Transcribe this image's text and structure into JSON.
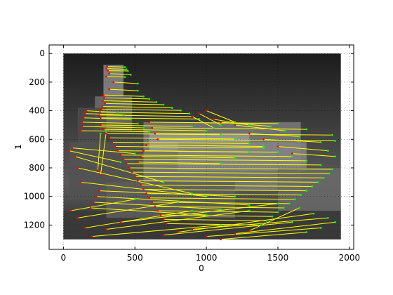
{
  "chart_data": {
    "type": "scatter",
    "title": "",
    "xlabel": "0",
    "ylabel": "1",
    "xlim": [
      -100,
      2030
    ],
    "ylim": [
      1370,
      -60
    ],
    "y_inverted": true,
    "grid": true,
    "x_ticks": [
      0,
      500,
      1000,
      1500,
      2000
    ],
    "x_tick_labels": [
      "0",
      "500",
      "1000",
      "1500",
      "2000"
    ],
    "y_ticks": [
      0,
      200,
      400,
      600,
      800,
      1000,
      1200
    ],
    "y_tick_labels": [
      "0",
      "200",
      "400",
      "600",
      "800",
      "1000",
      "1200"
    ],
    "background_image": {
      "description_type": "grayscale photograph",
      "extent_x": [
        0,
        1940
      ],
      "extent_y": [
        0,
        1300
      ]
    },
    "colors": {
      "match_line": "#ffff00",
      "keypoint_a": "#ff0000",
      "keypoint_b": "#00ff00"
    },
    "series": [
      {
        "segments": [
          [
            305,
            90,
            430,
            95
          ],
          [
            300,
            105,
            440,
            110
          ],
          [
            310,
            120,
            450,
            122
          ],
          [
            320,
            140,
            470,
            148
          ],
          [
            300,
            160,
            430,
            165
          ],
          [
            280,
            290,
            560,
            300
          ],
          [
            285,
            310,
            600,
            318
          ],
          [
            275,
            330,
            650,
            340
          ],
          [
            290,
            350,
            700,
            358
          ],
          [
            270,
            370,
            760,
            380
          ],
          [
            265,
            390,
            820,
            398
          ],
          [
            255,
            410,
            880,
            420
          ],
          [
            250,
            430,
            900,
            440
          ],
          [
            260,
            450,
            950,
            458
          ],
          [
            160,
            400,
            380,
            412
          ],
          [
            150,
            420,
            420,
            430
          ],
          [
            140,
            450,
            470,
            460
          ],
          [
            130,
            480,
            520,
            490
          ],
          [
            130,
            510,
            560,
            520
          ],
          [
            120,
            540,
            600,
            548
          ],
          [
            260,
            500,
            900,
            510
          ],
          [
            280,
            530,
            1000,
            540
          ],
          [
            300,
            560,
            1100,
            568
          ],
          [
            320,
            590,
            1200,
            598
          ],
          [
            340,
            620,
            1300,
            630
          ],
          [
            360,
            650,
            1400,
            660
          ],
          [
            380,
            680,
            1500,
            690
          ],
          [
            400,
            710,
            1600,
            720
          ],
          [
            420,
            740,
            1700,
            750
          ],
          [
            440,
            770,
            1800,
            780
          ],
          [
            460,
            800,
            1880,
            810
          ],
          [
            480,
            830,
            1860,
            840
          ],
          [
            500,
            860,
            1820,
            870
          ],
          [
            520,
            890,
            1780,
            900
          ],
          [
            540,
            920,
            1740,
            930
          ],
          [
            560,
            950,
            1700,
            960
          ],
          [
            580,
            980,
            1660,
            990
          ],
          [
            600,
            1010,
            1620,
            1020
          ],
          [
            620,
            1040,
            1580,
            1050
          ],
          [
            640,
            1070,
            1540,
            1080
          ],
          [
            660,
            1100,
            1500,
            1110
          ],
          [
            680,
            1130,
            1460,
            1140
          ],
          [
            700,
            1160,
            1420,
            1170
          ],
          [
            720,
            1190,
            1380,
            1200
          ],
          [
            600,
            480,
            1500,
            490
          ],
          [
            620,
            520,
            1700,
            530
          ],
          [
            640,
            560,
            1880,
            570
          ],
          [
            660,
            600,
            1900,
            610
          ],
          [
            580,
            640,
            1400,
            650
          ],
          [
            560,
            680,
            1300,
            690
          ],
          [
            540,
            720,
            1200,
            730
          ],
          [
            520,
            760,
            1100,
            770
          ],
          [
            60,
            660,
            500,
            700
          ],
          [
            40,
            680,
            400,
            760
          ],
          [
            80,
            720,
            700,
            900
          ],
          [
            100,
            800,
            900,
            980
          ],
          [
            120,
            900,
            1000,
            1000
          ],
          [
            50,
            1100,
            500,
            1020
          ],
          [
            100,
            1150,
            800,
            1040
          ],
          [
            150,
            1220,
            900,
            1100
          ],
          [
            200,
            1280,
            1100,
            1200
          ],
          [
            300,
            1230,
            1300,
            1100
          ],
          [
            400,
            1180,
            1500,
            1050
          ],
          [
            700,
            1270,
            1600,
            1180
          ],
          [
            800,
            1250,
            1750,
            1120
          ],
          [
            900,
            1230,
            1850,
            1150
          ],
          [
            1000,
            1280,
            1800,
            1220
          ],
          [
            1100,
            1300,
            1700,
            1250
          ],
          [
            1200,
            1260,
            1900,
            1180
          ],
          [
            1300,
            1240,
            1650,
            1080
          ],
          [
            250,
            960,
            1200,
            1000
          ],
          [
            230,
            1000,
            1300,
            1060
          ],
          [
            210,
            1040,
            1100,
            1090
          ],
          [
            190,
            1080,
            1000,
            1130
          ],
          [
            260,
            850,
            300,
            540
          ],
          [
            240,
            820,
            260,
            560
          ],
          [
            900,
            440,
            1050,
            520
          ],
          [
            950,
            420,
            1100,
            500
          ],
          [
            1000,
            400,
            1200,
            480
          ],
          [
            1050,
            460,
            1300,
            500
          ],
          [
            1100,
            480,
            1450,
            510
          ],
          [
            1200,
            500,
            1550,
            540
          ],
          [
            1300,
            560,
            1650,
            580
          ],
          [
            1400,
            600,
            1800,
            620
          ],
          [
            1500,
            650,
            1850,
            680
          ],
          [
            1600,
            700,
            1900,
            720
          ],
          [
            350,
            200,
            520,
            210
          ],
          [
            320,
            250,
            520,
            260
          ]
        ]
      }
    ]
  }
}
